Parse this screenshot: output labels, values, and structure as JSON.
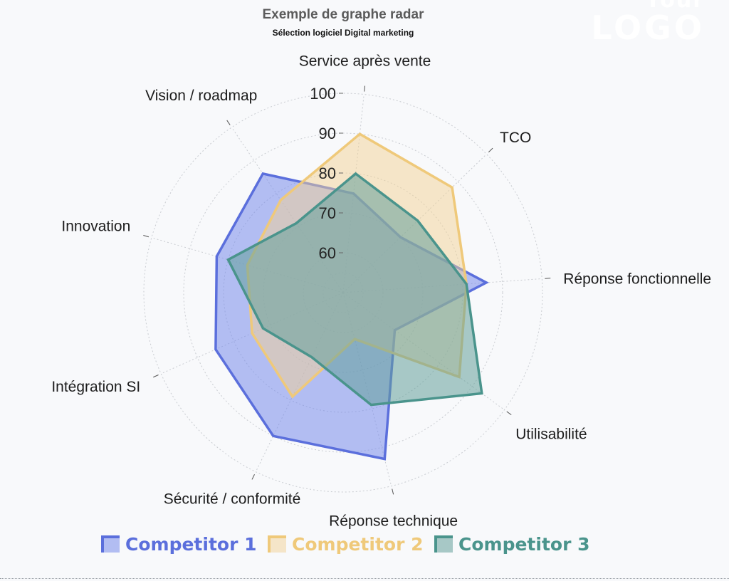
{
  "header": {
    "title": "Exemple de graphe radar",
    "subtitle": "Sélection logiciel Digital marketing"
  },
  "logo": {
    "line1": "Your",
    "line2": "LOGO"
  },
  "chart_data": {
    "type": "radar",
    "categories": [
      "Service après vente",
      "TCO",
      "Réponse fonctionnelle",
      "Utilisabilité",
      "Réponse technique",
      "Sécurité / conformité",
      "Intégration SI",
      "Innovation",
      "Vision / roadmap"
    ],
    "radial_ticks": [
      60,
      70,
      80,
      90,
      100
    ],
    "rlim": [
      50,
      100
    ],
    "grid": true,
    "legend_position": "bottom",
    "series": [
      {
        "name": "Competitor 1",
        "values": [
          75,
          70,
          86,
          66,
          93,
          90,
          85,
          83,
          86
        ],
        "color": "#5b6fdc",
        "fill": "rgba(120,140,235,0.55)"
      },
      {
        "name": "Competitor 2",
        "values": [
          90,
          88,
          81,
          86,
          62,
          79,
          75,
          75,
          78
        ],
        "color": "#efc97a",
        "fill": "rgba(242,210,150,0.5)"
      },
      {
        "name": "Competitor 3",
        "values": [
          80,
          76,
          81,
          93,
          79,
          68,
          72,
          80,
          71
        ],
        "color": "#4a948c",
        "fill": "rgba(100,160,155,0.55)"
      }
    ]
  }
}
